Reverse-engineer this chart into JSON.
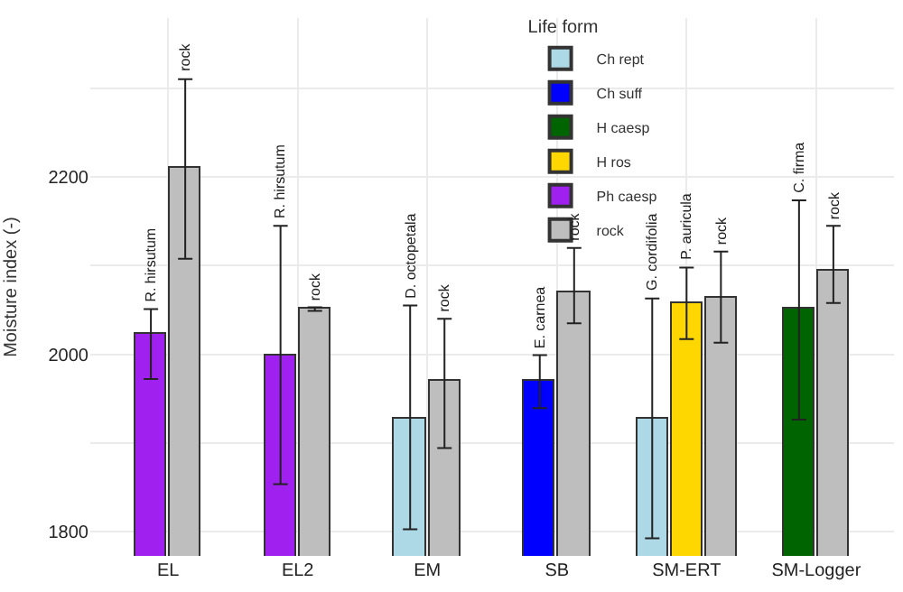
{
  "chart_data": {
    "type": "bar",
    "ylabel": "Moisture index (-)",
    "legend_title": "Life form",
    "categories": [
      "EL",
      "EL2",
      "EM",
      "SB",
      "SM-ERT",
      "SM-Logger"
    ],
    "series": [
      {
        "name": "Ch rept",
        "color": "#add8e6",
        "values": [
          null,
          null,
          1928,
          null,
          1928,
          null
        ],
        "errors": [
          null,
          null,
          [
            1802,
            2055
          ],
          null,
          [
            1792,
            2063
          ],
          null
        ]
      },
      {
        "name": "Ch suff",
        "color": "#0000ff",
        "values": [
          null,
          null,
          null,
          1970,
          null,
          null
        ],
        "errors": [
          null,
          null,
          null,
          [
            1939,
            1999
          ],
          null,
          null
        ]
      },
      {
        "name": "H caesp",
        "color": "#006400",
        "values": [
          null,
          null,
          null,
          null,
          null,
          2051
        ],
        "errors": [
          null,
          null,
          null,
          null,
          null,
          [
            1926,
            2174
          ]
        ]
      },
      {
        "name": "H ros",
        "color": "#ffd700",
        "values": [
          null,
          null,
          null,
          null,
          2058,
          null
        ],
        "errors": [
          null,
          null,
          null,
          null,
          [
            2017,
            2098
          ],
          null
        ]
      },
      {
        "name": "Ph caesp",
        "color": "#a020f0",
        "values": [
          2022,
          1999,
          null,
          null,
          null,
          null
        ],
        "errors": [
          [
            1972,
            2051
          ],
          [
            1853,
            2145
          ],
          null,
          null,
          null,
          null
        ]
      },
      {
        "name": "rock",
        "color": "#bebebe",
        "values": [
          2210,
          2051,
          1969,
          2069,
          2063,
          2094
        ],
        "errors": [
          [
            2108,
            2311
          ],
          [
            2049,
            2053
          ],
          [
            1894,
            2040
          ],
          [
            2035,
            2120
          ],
          [
            2013,
            2116
          ],
          [
            2058,
            2145
          ]
        ]
      }
    ],
    "annotations": [
      "R. hirsutum",
      "rock",
      "R. hirsutum",
      "rock",
      "D. octopetala",
      "rock",
      "E. carnea",
      "rock",
      "G. cordifolia",
      "P. auricula",
      "rock",
      "C. firma",
      "rock"
    ],
    "ylim": [
      1772,
      2380
    ],
    "yticks": [
      1800,
      {
        "value": 1900,
        "label": null
      },
      2000,
      {
        "value": 2100,
        "label": null
      },
      2200,
      {
        "value": 2300,
        "label": null
      }
    ],
    "grid": true,
    "legend": "top"
  }
}
